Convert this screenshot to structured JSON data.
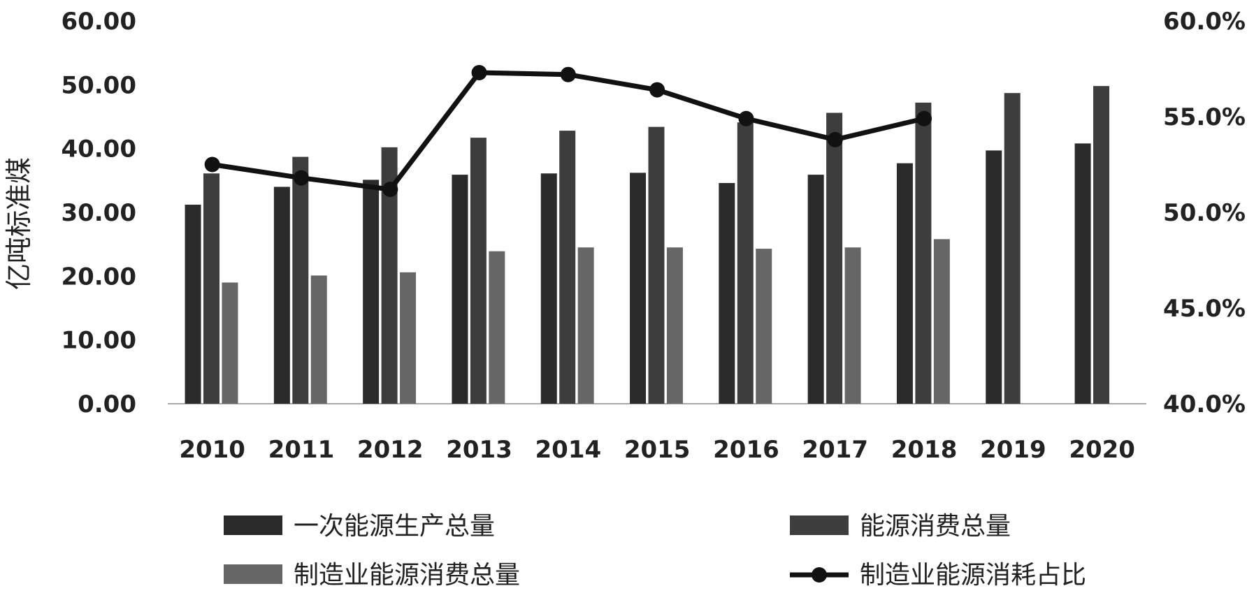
{
  "chart_data": {
    "type": "bar",
    "categories": [
      "2010",
      "2011",
      "2012",
      "2013",
      "2014",
      "2015",
      "2016",
      "2017",
      "2018",
      "2019",
      "2020"
    ],
    "ylabel": "亿吨标准煤",
    "ylim": [
      0,
      60
    ],
    "yticks": [
      "0.00",
      "10.00",
      "20.00",
      "30.00",
      "40.00",
      "50.00",
      "60.00"
    ],
    "y2lim": [
      40,
      60
    ],
    "y2ticks": [
      "40.0%",
      "45.0%",
      "50.0%",
      "55.0%",
      "60.0%"
    ],
    "grid": false,
    "legend_position": "bottom",
    "series": [
      {
        "name": "一次能源生产总量",
        "type": "bar",
        "color": "#2b2b2b",
        "values": [
          31.2,
          34.0,
          35.1,
          35.9,
          36.1,
          36.2,
          34.6,
          35.9,
          37.7,
          39.7,
          40.8
        ]
      },
      {
        "name": "能源消费总量",
        "type": "bar",
        "color": "#3d3d3d",
        "values": [
          36.1,
          38.7,
          40.2,
          41.7,
          42.8,
          43.4,
          44.1,
          45.6,
          47.2,
          48.7,
          49.8
        ]
      },
      {
        "name": "制造业能源消费总量",
        "type": "bar",
        "color": "#666666",
        "values": [
          19.0,
          20.1,
          20.6,
          23.9,
          24.5,
          24.5,
          24.3,
          24.5,
          25.8,
          null,
          null
        ]
      },
      {
        "name": "制造业能源消耗占比",
        "type": "line",
        "axis": "right",
        "color": "#111111",
        "values": [
          52.5,
          51.8,
          51.2,
          57.3,
          57.2,
          56.4,
          54.9,
          53.8,
          54.9,
          null,
          null
        ]
      }
    ]
  }
}
